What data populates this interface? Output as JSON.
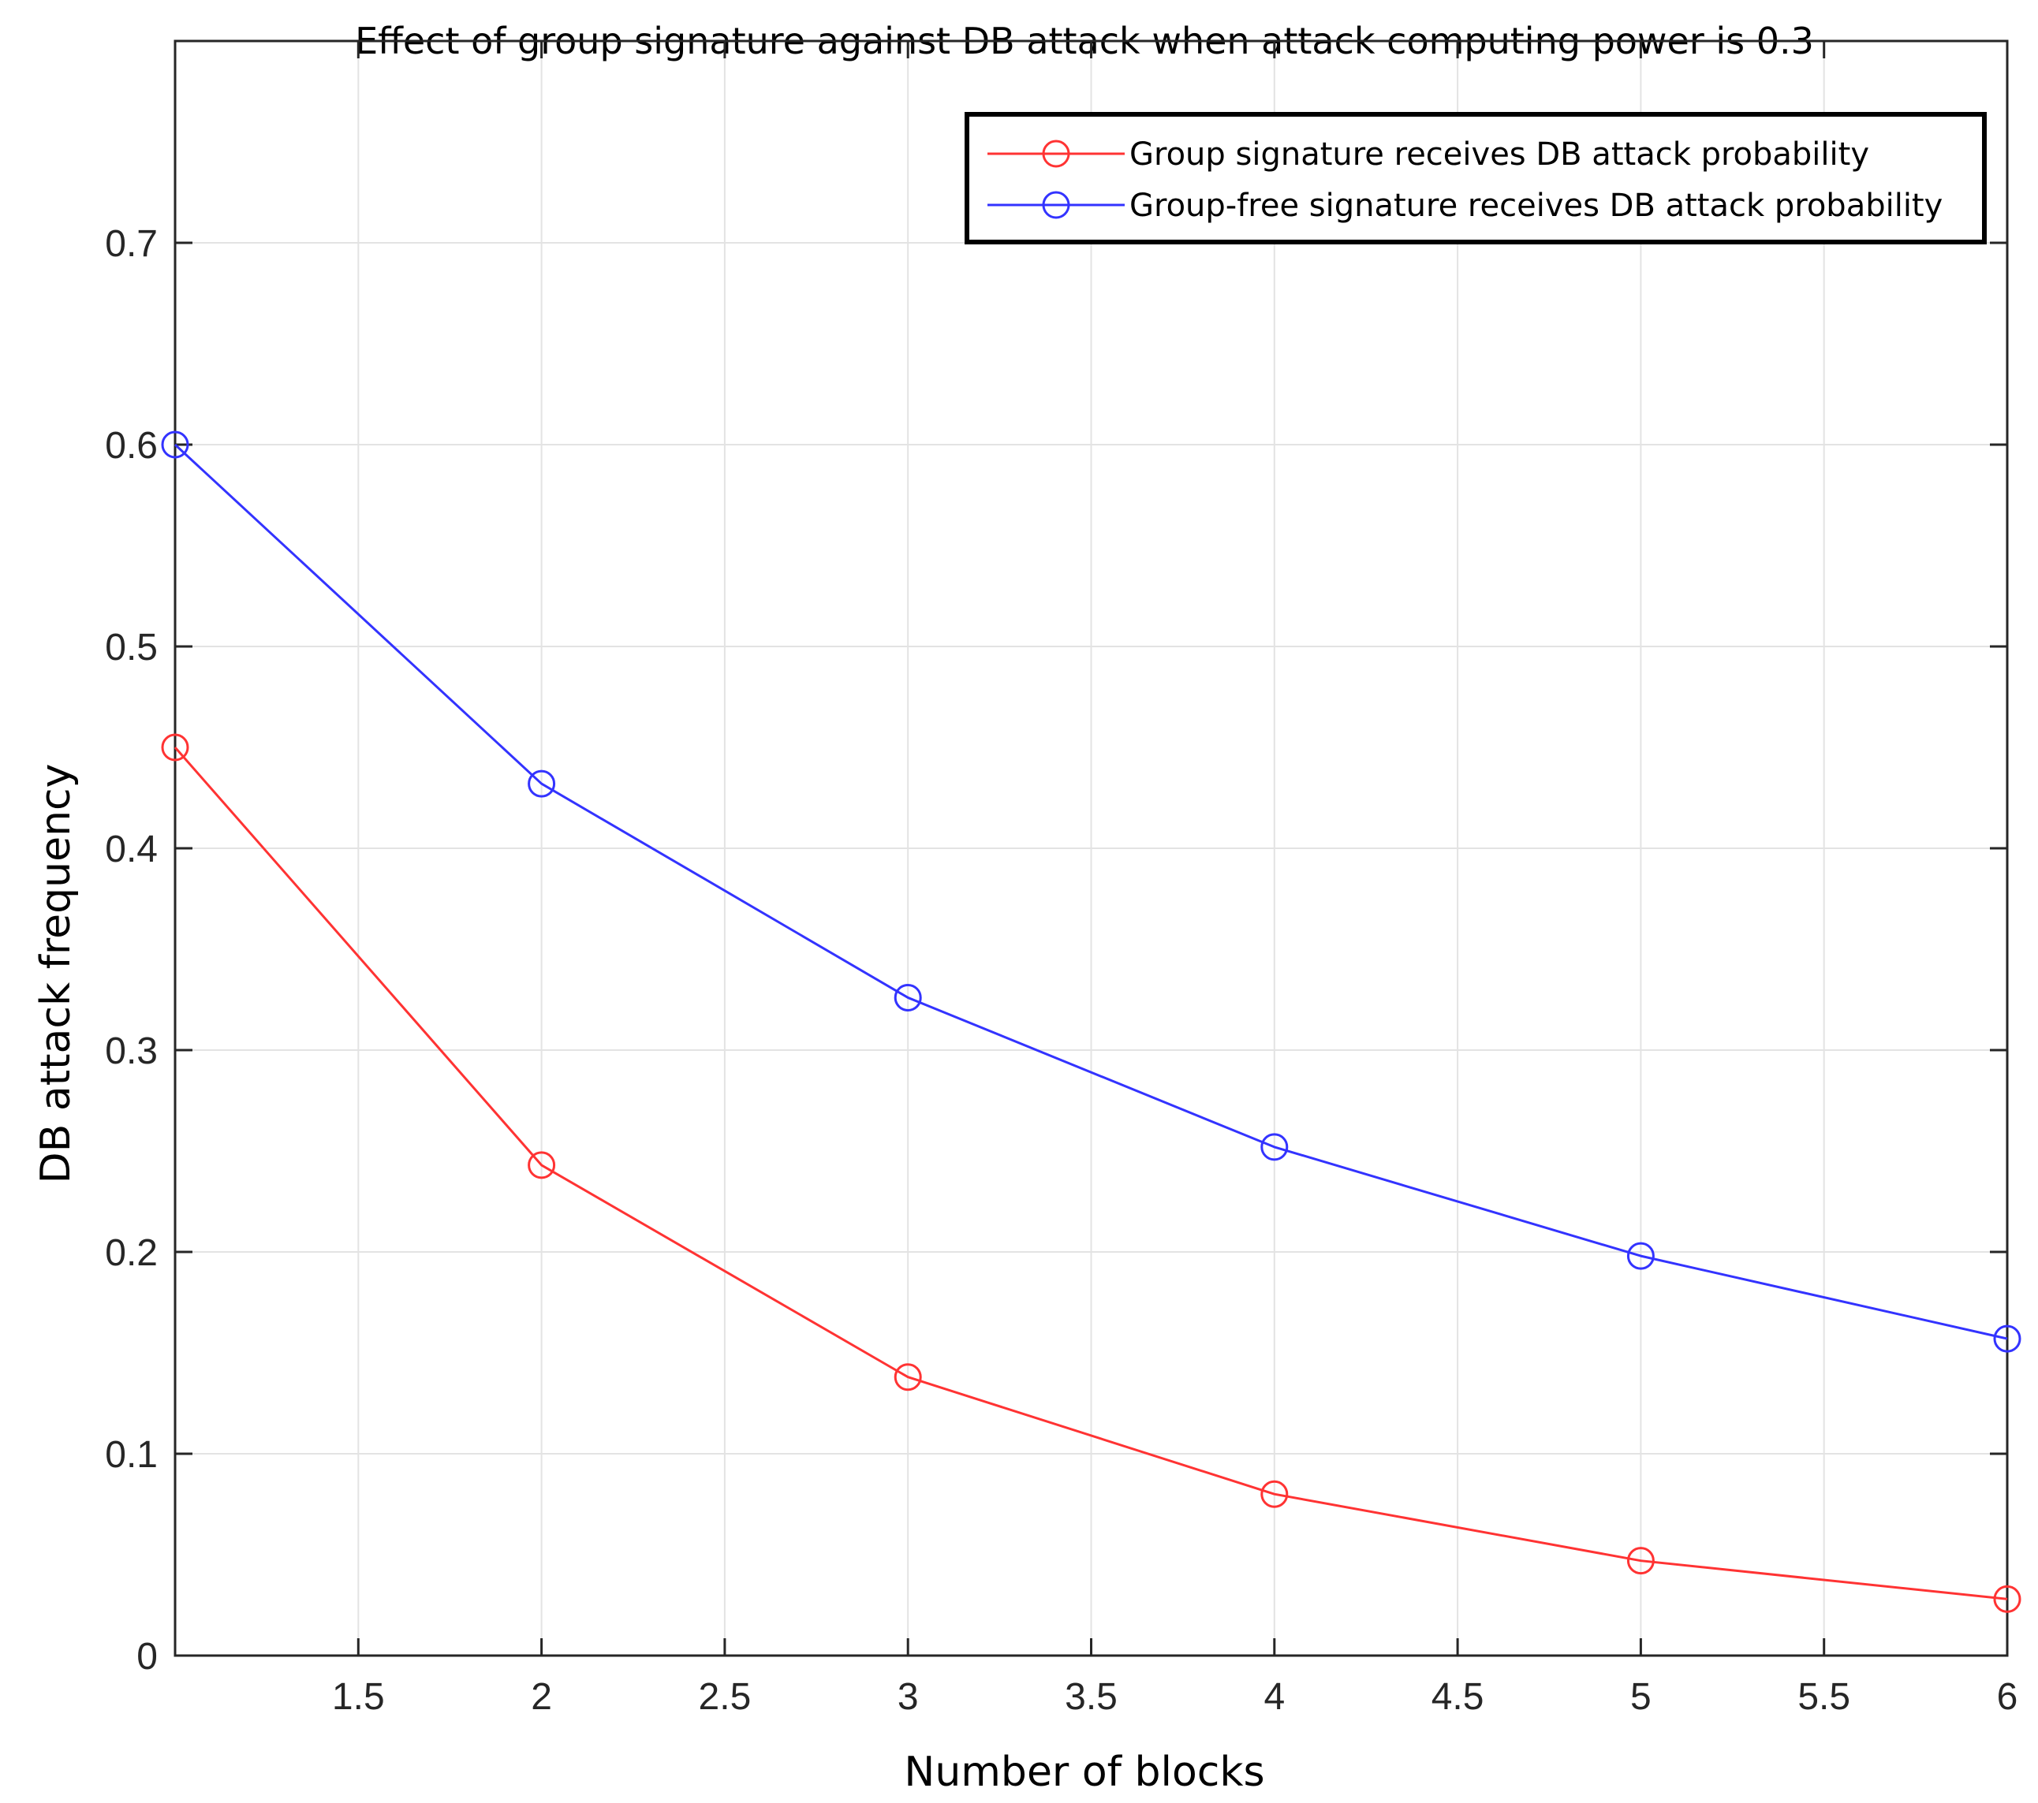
{
  "chart_data": {
    "type": "line",
    "title": "Effect of group signature against DB attack when attack computing power is 0.3",
    "xlabel": "Number of blocks",
    "ylabel": "DB attack frequency",
    "xlim": [
      1,
      6
    ],
    "ylim": [
      0,
      0.8
    ],
    "xticks": [
      1.5,
      2,
      2.5,
      3,
      3.5,
      4,
      4.5,
      5,
      5.5,
      6
    ],
    "xtick_labels": [
      "1.5",
      "2",
      "2.5",
      "3",
      "3.5",
      "4",
      "4.5",
      "5",
      "5.5",
      "6"
    ],
    "yticks": [
      0,
      0.1,
      0.2,
      0.3,
      0.4,
      0.5,
      0.6,
      0.7
    ],
    "ytick_labels": [
      "0",
      "0.1",
      "0.2",
      "0.3",
      "0.4",
      "0.5",
      "0.6",
      "0.7"
    ],
    "grid": true,
    "legend_position": "top-right",
    "series": [
      {
        "name": "Group signature receives DB attack probability",
        "color": "#ff3333",
        "marker": "circle",
        "x": [
          1,
          2,
          3,
          4,
          5,
          6
        ],
        "y": [
          0.45,
          0.243,
          0.138,
          0.08,
          0.047,
          0.028
        ]
      },
      {
        "name": "Group-free signature receives DB attack probability",
        "color": "#3333ff",
        "marker": "circle",
        "x": [
          1,
          2,
          3,
          4,
          5,
          6
        ],
        "y": [
          0.6,
          0.432,
          0.326,
          0.252,
          0.198,
          0.157
        ]
      }
    ]
  }
}
